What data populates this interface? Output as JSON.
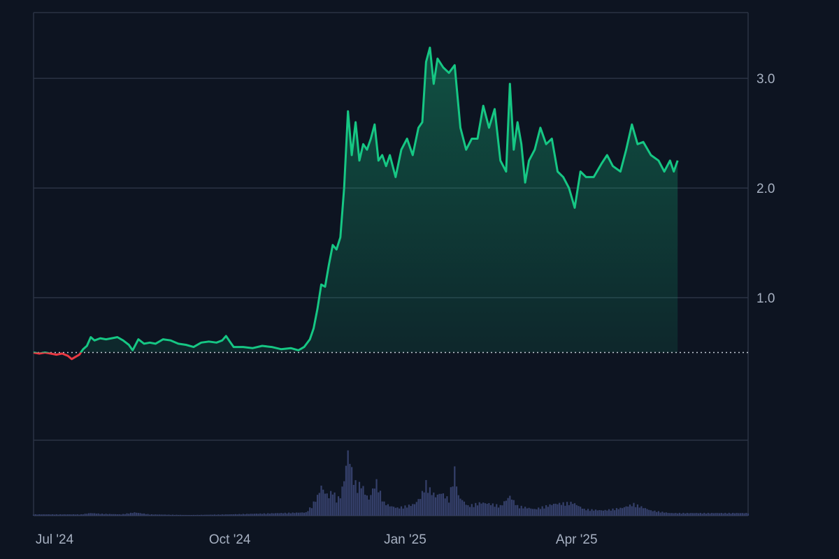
{
  "chart_data": {
    "type": "area",
    "title": "",
    "xlabel": "",
    "ylabel": "",
    "x_range": [
      "2024-06-20",
      "2025-06-30"
    ],
    "ylim": [
      -0.3,
      3.6
    ],
    "y_ticks": [
      {
        "value": 1.0,
        "label": "1.0"
      },
      {
        "value": 2.0,
        "label": "2.0"
      },
      {
        "value": 3.0,
        "label": "3.0"
      }
    ],
    "x_ticks": [
      {
        "date": "2024-07-01",
        "label": "Jul '24"
      },
      {
        "date": "2024-10-01",
        "label": "Oct '24"
      },
      {
        "date": "2025-01-01",
        "label": "Jan '25"
      },
      {
        "date": "2025-04-01",
        "label": "Apr '25"
      }
    ],
    "baseline": 0.5,
    "grid": true,
    "legend": "none",
    "colors": {
      "up": "#16c784",
      "down": "#ea3943",
      "volume": "#35406b",
      "grid": "#2b3344",
      "baseline": "#c5cbd6"
    },
    "series": [
      {
        "values": [
          [
            "2024-06-20",
            0.5
          ],
          [
            "2024-06-23",
            0.49
          ],
          [
            "2024-06-26",
            0.5
          ],
          [
            "2024-06-29",
            0.49
          ],
          [
            "2024-07-02",
            0.48
          ],
          [
            "2024-07-05",
            0.49
          ],
          [
            "2024-07-08",
            0.47
          ],
          [
            "2024-07-10",
            0.44
          ],
          [
            "2024-07-12",
            0.46
          ],
          [
            "2024-07-14",
            0.48
          ],
          [
            "2024-07-16",
            0.53
          ],
          [
            "2024-07-18",
            0.56
          ],
          [
            "2024-07-20",
            0.64
          ],
          [
            "2024-07-22",
            0.61
          ],
          [
            "2024-07-25",
            0.63
          ],
          [
            "2024-07-28",
            0.62
          ],
          [
            "2024-07-31",
            0.63
          ],
          [
            "2024-08-03",
            0.64
          ],
          [
            "2024-08-06",
            0.61
          ],
          [
            "2024-08-09",
            0.57
          ],
          [
            "2024-08-11",
            0.52
          ],
          [
            "2024-08-14",
            0.62
          ],
          [
            "2024-08-17",
            0.58
          ],
          [
            "2024-08-20",
            0.59
          ],
          [
            "2024-08-23",
            0.58
          ],
          [
            "2024-08-27",
            0.62
          ],
          [
            "2024-08-31",
            0.61
          ],
          [
            "2024-09-04",
            0.58
          ],
          [
            "2024-09-08",
            0.57
          ],
          [
            "2024-09-12",
            0.55
          ],
          [
            "2024-09-16",
            0.59
          ],
          [
            "2024-09-20",
            0.6
          ],
          [
            "2024-09-24",
            0.59
          ],
          [
            "2024-09-27",
            0.61
          ],
          [
            "2024-09-29",
            0.65
          ],
          [
            "2024-10-01",
            0.6
          ],
          [
            "2024-10-03",
            0.55
          ],
          [
            "2024-10-08",
            0.55
          ],
          [
            "2024-10-13",
            0.54
          ],
          [
            "2024-10-18",
            0.56
          ],
          [
            "2024-10-23",
            0.55
          ],
          [
            "2024-10-28",
            0.53
          ],
          [
            "2024-11-02",
            0.54
          ],
          [
            "2024-11-06",
            0.52
          ],
          [
            "2024-11-09",
            0.55
          ],
          [
            "2024-11-12",
            0.62
          ],
          [
            "2024-11-14",
            0.72
          ],
          [
            "2024-11-16",
            0.9
          ],
          [
            "2024-11-18",
            1.12
          ],
          [
            "2024-11-20",
            1.1
          ],
          [
            "2024-11-22",
            1.3
          ],
          [
            "2024-11-24",
            1.48
          ],
          [
            "2024-11-26",
            1.44
          ],
          [
            "2024-11-28",
            1.55
          ],
          [
            "2024-11-30",
            2.0
          ],
          [
            "2024-12-02",
            2.7
          ],
          [
            "2024-12-04",
            2.3
          ],
          [
            "2024-12-06",
            2.6
          ],
          [
            "2024-12-08",
            2.25
          ],
          [
            "2024-12-10",
            2.4
          ],
          [
            "2024-12-12",
            2.35
          ],
          [
            "2024-12-14",
            2.45
          ],
          [
            "2024-12-16",
            2.58
          ],
          [
            "2024-12-18",
            2.25
          ],
          [
            "2024-12-20",
            2.3
          ],
          [
            "2024-12-22",
            2.2
          ],
          [
            "2024-12-24",
            2.3
          ],
          [
            "2024-12-27",
            2.1
          ],
          [
            "2024-12-30",
            2.35
          ],
          [
            "2025-01-02",
            2.45
          ],
          [
            "2025-01-05",
            2.3
          ],
          [
            "2025-01-08",
            2.55
          ],
          [
            "2025-01-10",
            2.6
          ],
          [
            "2025-01-12",
            3.15
          ],
          [
            "2025-01-14",
            3.28
          ],
          [
            "2025-01-16",
            2.95
          ],
          [
            "2025-01-18",
            3.18
          ],
          [
            "2025-01-21",
            3.1
          ],
          [
            "2025-01-24",
            3.05
          ],
          [
            "2025-01-27",
            3.12
          ],
          [
            "2025-01-30",
            2.55
          ],
          [
            "2025-02-02",
            2.35
          ],
          [
            "2025-02-05",
            2.45
          ],
          [
            "2025-02-08",
            2.45
          ],
          [
            "2025-02-11",
            2.75
          ],
          [
            "2025-02-14",
            2.55
          ],
          [
            "2025-02-17",
            2.72
          ],
          [
            "2025-02-20",
            2.25
          ],
          [
            "2025-02-23",
            2.15
          ],
          [
            "2025-02-25",
            2.95
          ],
          [
            "2025-02-27",
            2.35
          ],
          [
            "2025-03-01",
            2.6
          ],
          [
            "2025-03-03",
            2.4
          ],
          [
            "2025-03-05",
            2.05
          ],
          [
            "2025-03-07",
            2.25
          ],
          [
            "2025-03-10",
            2.35
          ],
          [
            "2025-03-13",
            2.55
          ],
          [
            "2025-03-16",
            2.4
          ],
          [
            "2025-03-19",
            2.45
          ],
          [
            "2025-03-22",
            2.15
          ],
          [
            "2025-03-25",
            2.1
          ],
          [
            "2025-03-28",
            2.0
          ],
          [
            "2025-03-31",
            1.82
          ],
          [
            "2025-04-03",
            2.15
          ],
          [
            "2025-04-06",
            2.1
          ],
          [
            "2025-04-10",
            2.1
          ],
          [
            "2025-04-14",
            2.22
          ],
          [
            "2025-04-17",
            2.3
          ],
          [
            "2025-04-20",
            2.2
          ],
          [
            "2025-04-24",
            2.15
          ],
          [
            "2025-04-27",
            2.35
          ],
          [
            "2025-04-30",
            2.58
          ],
          [
            "2025-05-03",
            2.4
          ],
          [
            "2025-05-06",
            2.42
          ],
          [
            "2025-05-10",
            2.3
          ],
          [
            "2025-05-14",
            2.25
          ],
          [
            "2025-05-17",
            2.15
          ],
          [
            "2025-05-20",
            2.25
          ],
          [
            "2025-05-22",
            2.15
          ],
          [
            "2025-05-24",
            2.25
          ]
        ]
      }
    ],
    "volume": [
      [
        "2024-07-15",
        0.02
      ],
      [
        "2024-07-20",
        0.04
      ],
      [
        "2024-07-25",
        0.03
      ],
      [
        "2024-08-05",
        0.02
      ],
      [
        "2024-08-12",
        0.05
      ],
      [
        "2024-08-20",
        0.02
      ],
      [
        "2024-09-10",
        0.01
      ],
      [
        "2024-10-01",
        0.02
      ],
      [
        "2024-11-10",
        0.05
      ],
      [
        "2024-11-13",
        0.15
      ],
      [
        "2024-11-16",
        0.3
      ],
      [
        "2024-11-18",
        0.45
      ],
      [
        "2024-11-20",
        0.35
      ],
      [
        "2024-11-22",
        0.3
      ],
      [
        "2024-11-24",
        0.4
      ],
      [
        "2024-11-26",
        0.25
      ],
      [
        "2024-11-28",
        0.3
      ],
      [
        "2024-11-30",
        0.55
      ],
      [
        "2024-12-02",
        0.98
      ],
      [
        "2024-12-03",
        0.85
      ],
      [
        "2024-12-05",
        0.55
      ],
      [
        "2024-12-07",
        0.45
      ],
      [
        "2024-12-09",
        0.5
      ],
      [
        "2024-12-11",
        0.35
      ],
      [
        "2024-12-13",
        0.25
      ],
      [
        "2024-12-15",
        0.4
      ],
      [
        "2024-12-17",
        0.52
      ],
      [
        "2024-12-19",
        0.35
      ],
      [
        "2024-12-21",
        0.2
      ],
      [
        "2024-12-24",
        0.15
      ],
      [
        "2024-12-28",
        0.12
      ],
      [
        "2025-01-02",
        0.15
      ],
      [
        "2025-01-06",
        0.18
      ],
      [
        "2025-01-09",
        0.28
      ],
      [
        "2025-01-12",
        0.5
      ],
      [
        "2025-01-14",
        0.4
      ],
      [
        "2025-01-17",
        0.3
      ],
      [
        "2025-01-20",
        0.35
      ],
      [
        "2025-01-24",
        0.25
      ],
      [
        "2025-01-27",
        0.7
      ],
      [
        "2025-01-29",
        0.3
      ],
      [
        "2025-02-03",
        0.15
      ],
      [
        "2025-02-10",
        0.2
      ],
      [
        "2025-02-15",
        0.18
      ],
      [
        "2025-02-20",
        0.15
      ],
      [
        "2025-02-25",
        0.3
      ],
      [
        "2025-03-01",
        0.15
      ],
      [
        "2025-03-10",
        0.1
      ],
      [
        "2025-03-20",
        0.18
      ],
      [
        "2025-03-30",
        0.2
      ],
      [
        "2025-04-05",
        0.1
      ],
      [
        "2025-04-15",
        0.08
      ],
      [
        "2025-04-25",
        0.12
      ],
      [
        "2025-05-01",
        0.18
      ],
      [
        "2025-05-10",
        0.08
      ],
      [
        "2025-05-20",
        0.04
      ]
    ]
  }
}
